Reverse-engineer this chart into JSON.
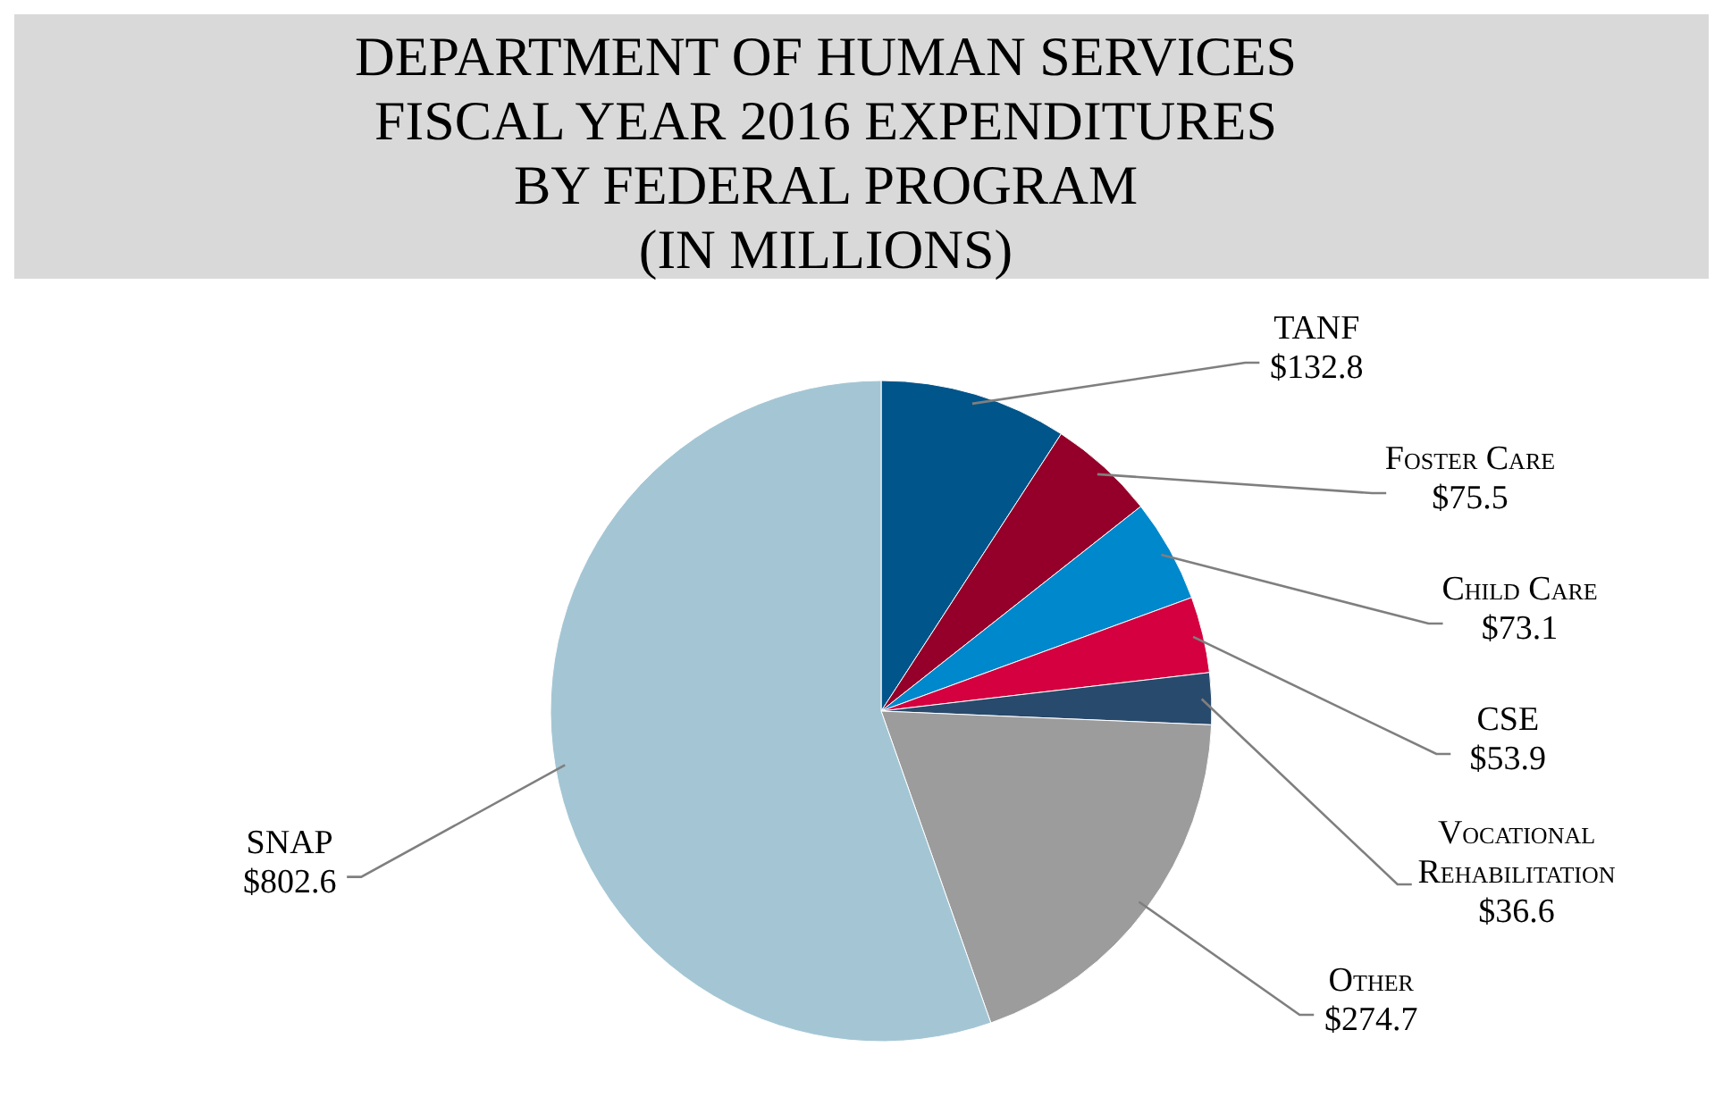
{
  "chart_data": {
    "type": "pie",
    "title": "DEPARTMENT OF HUMAN SERVICES\nFISCAL YEAR 2016 EXPENDITURES\nBY FEDERAL PROGRAM\n(IN MILLIONS)",
    "categories": [
      "TANF",
      "Foster Care",
      "Child Care",
      "CSE",
      "Vocational Rehabilitation",
      "Other",
      "SNAP"
    ],
    "values": [
      132.8,
      75.5,
      73.1,
      53.9,
      36.6,
      274.7,
      802.6
    ],
    "value_labels": [
      "$132.8",
      "$75.5",
      "$73.1",
      "$53.9",
      "$36.6",
      "$274.7",
      "$802.6"
    ],
    "colors": [
      "#00558a",
      "#940029",
      "#0088cc",
      "#d4003f",
      "#284a6c",
      "#9c9c9c",
      "#a4c6d4"
    ]
  }
}
